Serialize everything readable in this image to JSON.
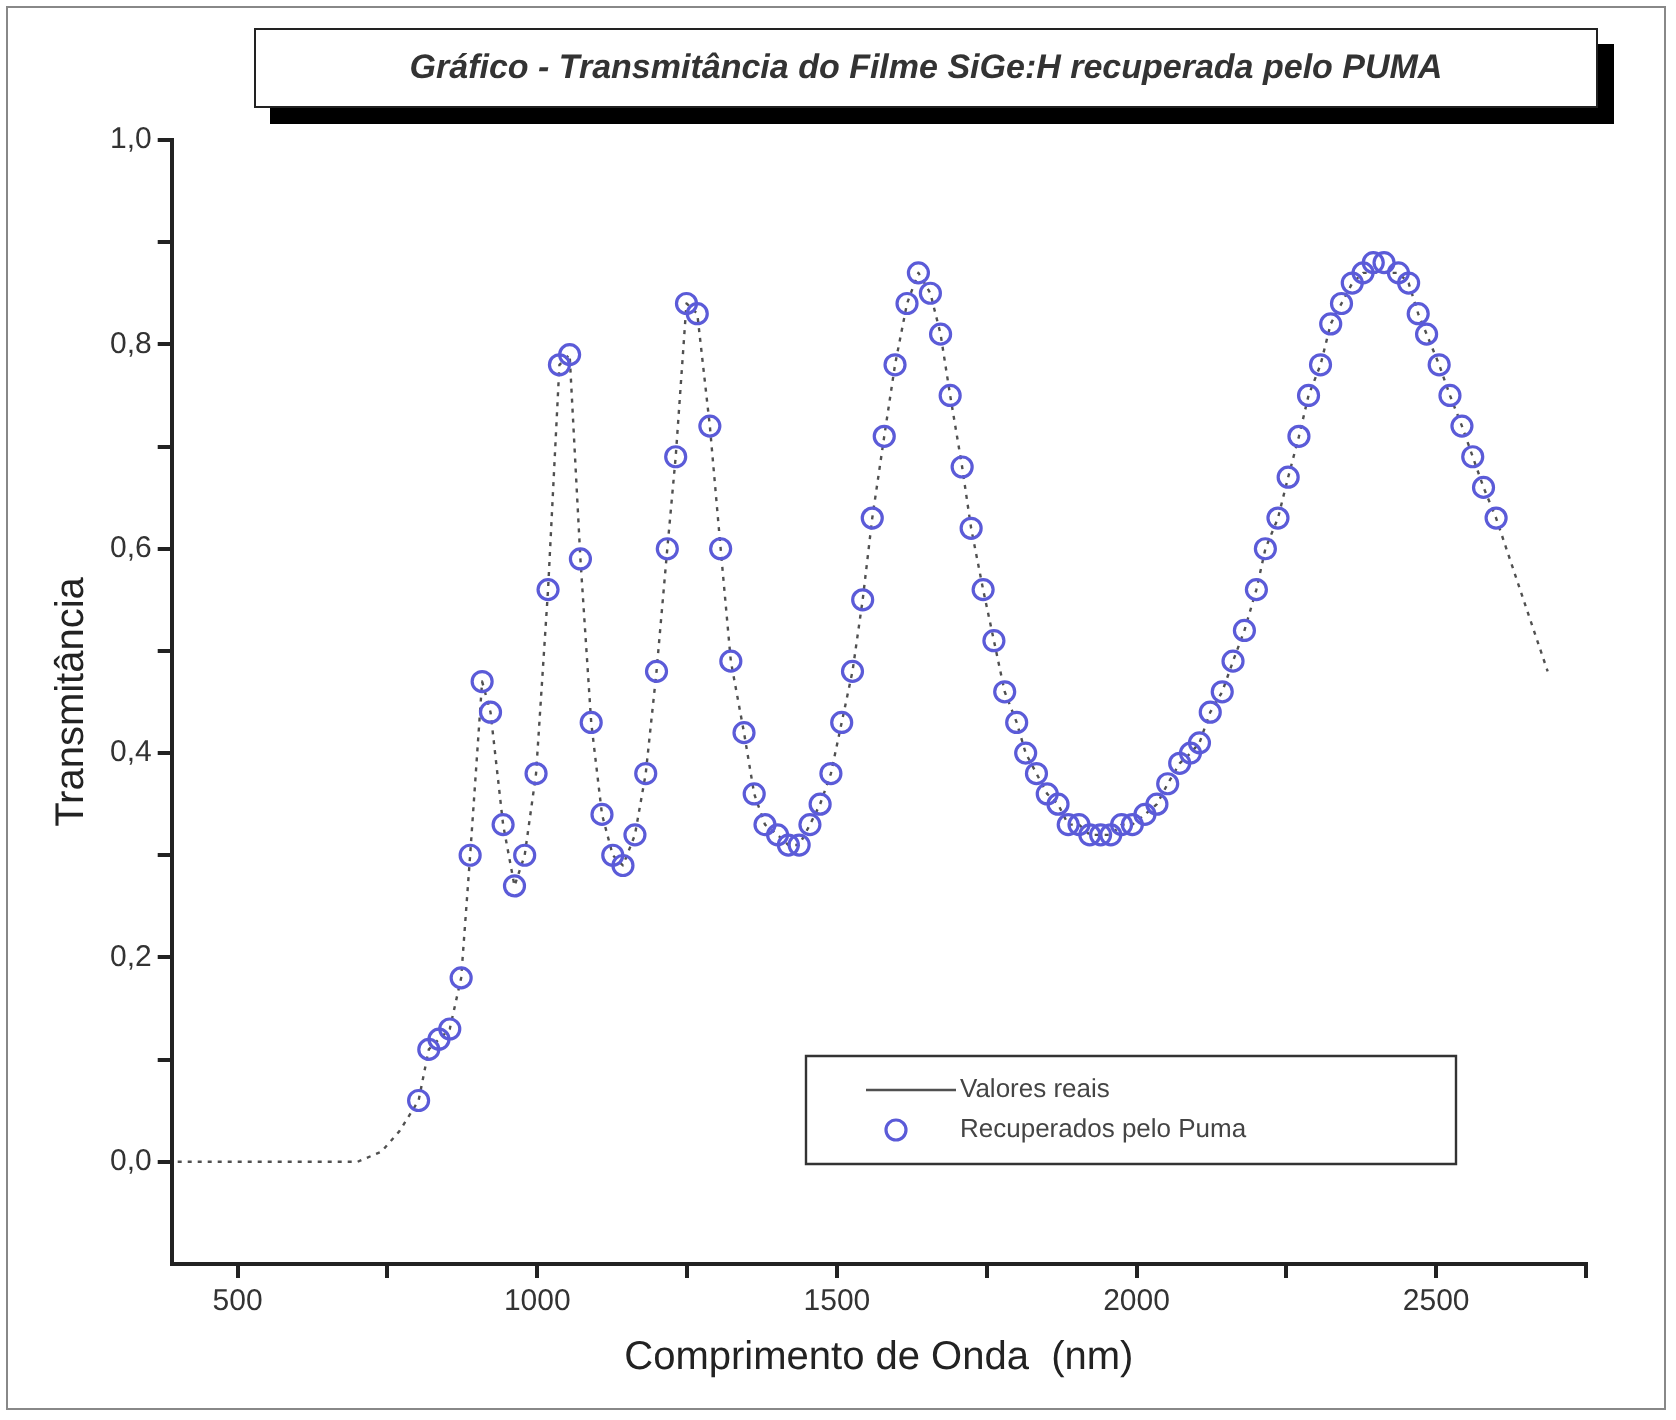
{
  "chart_data": {
    "type": "scatter",
    "title": "Gráfico - Transmitância do Filme SiGe:H recuperada pelo PUMA",
    "xlabel": "Comprimento de Onda  (nm)",
    "ylabel": "Transmitância",
    "xlim": [
      390,
      2750
    ],
    "ylim": [
      -0.1,
      1.0
    ],
    "xticks": [
      500,
      {
        "value": 750,
        "label": null
      },
      1000,
      {
        "value": 1250,
        "label": null
      },
      1500,
      {
        "value": 1750,
        "label": null
      },
      2000,
      {
        "value": 2250,
        "label": null
      },
      2500,
      {
        "value": 2750,
        "label": null
      }
    ],
    "yticks": [
      {
        "value": 0,
        "label": "0,0"
      },
      {
        "value": 0.1,
        "label": null
      },
      {
        "value": 0.2,
        "label": "0,2"
      },
      {
        "value": 0.3,
        "label": null
      },
      {
        "value": 0.4,
        "label": "0,4"
      },
      {
        "value": 0.5,
        "label": null
      },
      {
        "value": 0.6,
        "label": "0,6"
      },
      {
        "value": 0.7,
        "label": null
      },
      {
        "value": 0.8,
        "label": "0,8"
      },
      {
        "value": 0.9,
        "label": null
      },
      {
        "value": 1.0,
        "label": "1,0"
      }
    ],
    "grid": false,
    "legend": "bottom right",
    "series": [
      {
        "name": "Valores reais",
        "type": "line",
        "color": "#505050",
        "marker": "none",
        "line_style": "dotted",
        "x": [
          400,
          700,
          740,
          770,
          802,
          819,
          836,
          854,
          873,
          888,
          908,
          922,
          943,
          962,
          979,
          998,
          1018,
          1037,
          1054,
          1072,
          1090,
          1108,
          1126,
          1143,
          1163,
          1181,
          1199,
          1217,
          1231,
          1249,
          1267,
          1288,
          1306,
          1323,
          1345,
          1362,
          1380,
          1401,
          1419,
          1437,
          1455,
          1472,
          1490,
          1508,
          1526,
          1543,
          1559,
          1579,
          1597,
          1617,
          1636,
          1656,
          1673,
          1689,
          1709,
          1724,
          1744,
          1762,
          1780,
          1800,
          1815,
          1833,
          1851,
          1869,
          1886,
          1904,
          1922,
          1940,
          1957,
          1975,
          1993,
          2014,
          2034,
          2052,
          2072,
          2090,
          2105,
          2123,
          2143,
          2161,
          2180,
          2200,
          2215,
          2236,
          2253,
          2271,
          2287,
          2307,
          2324,
          2342,
          2360,
          2378,
          2395,
          2413,
          2437,
          2454,
          2470,
          2484,
          2505,
          2523,
          2543,
          2561,
          2579,
          2600,
          2640,
          2686
        ],
        "values": [
          0,
          0,
          0.01,
          0.03,
          0.06,
          0.11,
          0.12,
          0.13,
          0.18,
          0.3,
          0.47,
          0.44,
          0.33,
          0.27,
          0.3,
          0.38,
          0.56,
          0.78,
          0.79,
          0.59,
          0.43,
          0.34,
          0.3,
          0.29,
          0.32,
          0.38,
          0.48,
          0.6,
          0.69,
          0.84,
          0.83,
          0.72,
          0.6,
          0.49,
          0.42,
          0.36,
          0.33,
          0.32,
          0.31,
          0.31,
          0.33,
          0.35,
          0.38,
          0.43,
          0.48,
          0.55,
          0.63,
          0.71,
          0.78,
          0.84,
          0.87,
          0.85,
          0.81,
          0.75,
          0.68,
          0.62,
          0.56,
          0.51,
          0.46,
          0.43,
          0.4,
          0.38,
          0.36,
          0.35,
          0.33,
          0.33,
          0.32,
          0.32,
          0.32,
          0.33,
          0.33,
          0.34,
          0.35,
          0.37,
          0.39,
          0.4,
          0.41,
          0.44,
          0.46,
          0.49,
          0.52,
          0.56,
          0.6,
          0.63,
          0.67,
          0.71,
          0.75,
          0.78,
          0.82,
          0.84,
          0.86,
          0.87,
          0.87,
          0.87,
          0.87,
          0.86,
          0.83,
          0.81,
          0.78,
          0.75,
          0.72,
          0.69,
          0.66,
          0.63,
          0.56,
          0.48
        ]
      },
      {
        "name": "Recuperados pelo Puma",
        "color": "#5b5bd8",
        "marker": "circle",
        "x": [
          802,
          819,
          836,
          854,
          873,
          888,
          908,
          922,
          943,
          962,
          979,
          998,
          1018,
          1037,
          1054,
          1072,
          1090,
          1108,
          1126,
          1143,
          1163,
          1181,
          1199,
          1217,
          1231,
          1249,
          1267,
          1288,
          1306,
          1323,
          1345,
          1362,
          1380,
          1401,
          1419,
          1437,
          1455,
          1472,
          1490,
          1508,
          1526,
          1543,
          1559,
          1579,
          1597,
          1617,
          1636,
          1656,
          1673,
          1689,
          1709,
          1724,
          1744,
          1762,
          1780,
          1800,
          1815,
          1833,
          1851,
          1869,
          1886,
          1904,
          1922,
          1940,
          1957,
          1975,
          1993,
          2014,
          2034,
          2052,
          2072,
          2090,
          2105,
          2123,
          2143,
          2161,
          2180,
          2200,
          2215,
          2236,
          2253,
          2271,
          2287,
          2307,
          2324,
          2342,
          2360,
          2378,
          2395,
          2413,
          2437,
          2454,
          2470,
          2484,
          2505,
          2523,
          2543,
          2561,
          2579,
          2600
        ],
        "values": [
          0.06,
          0.11,
          0.12,
          0.13,
          0.18,
          0.3,
          0.47,
          0.44,
          0.33,
          0.27,
          0.3,
          0.38,
          0.56,
          0.78,
          0.79,
          0.59,
          0.43,
          0.34,
          0.3,
          0.29,
          0.32,
          0.38,
          0.48,
          0.6,
          0.69,
          0.84,
          0.83,
          0.72,
          0.6,
          0.49,
          0.42,
          0.36,
          0.33,
          0.32,
          0.31,
          0.31,
          0.33,
          0.35,
          0.38,
          0.43,
          0.48,
          0.55,
          0.63,
          0.71,
          0.78,
          0.84,
          0.87,
          0.85,
          0.81,
          0.75,
          0.68,
          0.62,
          0.56,
          0.51,
          0.46,
          0.43,
          0.4,
          0.38,
          0.36,
          0.35,
          0.33,
          0.33,
          0.32,
          0.32,
          0.32,
          0.33,
          0.33,
          0.34,
          0.35,
          0.37,
          0.39,
          0.4,
          0.41,
          0.44,
          0.46,
          0.49,
          0.52,
          0.56,
          0.6,
          0.63,
          0.67,
          0.71,
          0.75,
          0.78,
          0.82,
          0.84,
          0.86,
          0.87,
          0.88,
          0.88,
          0.87,
          0.86,
          0.83,
          0.81,
          0.78,
          0.75,
          0.72,
          0.69,
          0.66,
          0.63
        ]
      }
    ]
  }
}
